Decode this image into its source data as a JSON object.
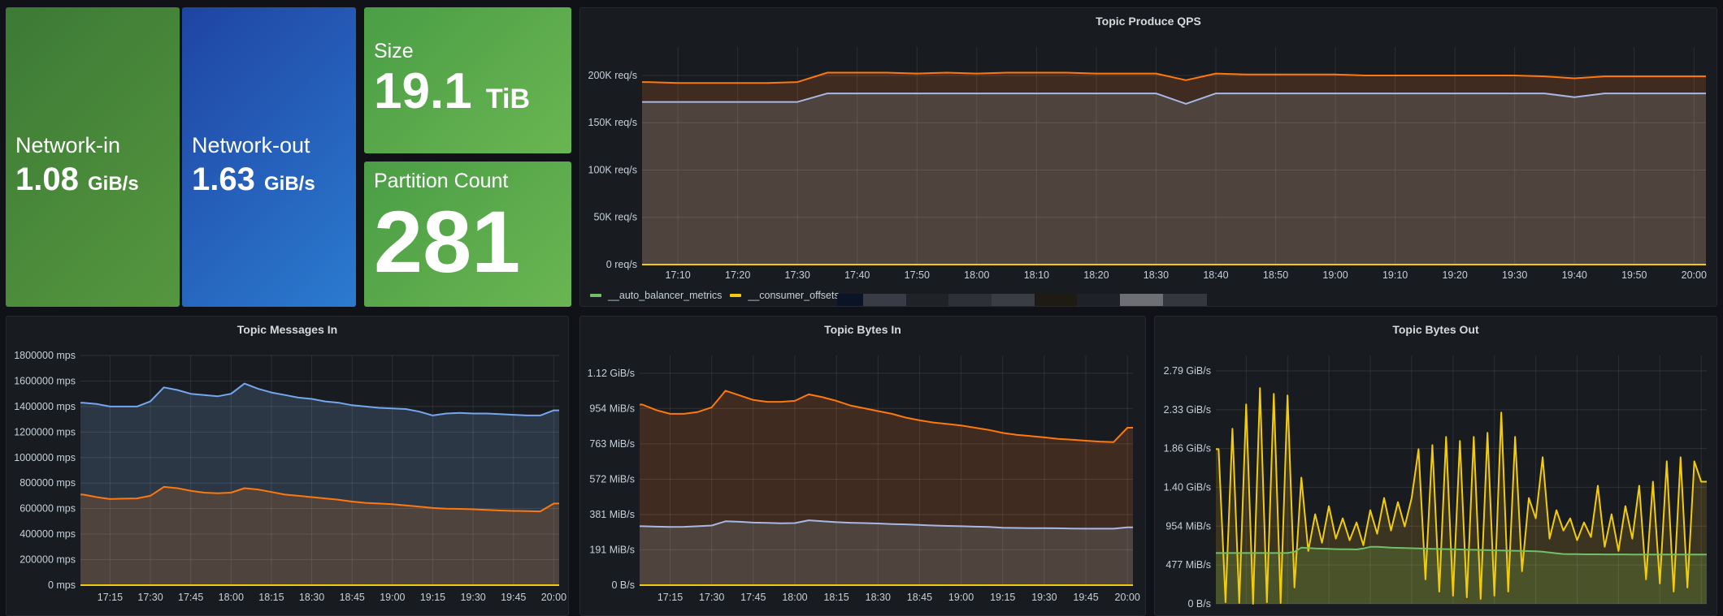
{
  "stats": {
    "network_in": {
      "label": "Network-in",
      "value": "1.08",
      "unit": "GiB/s",
      "color": "#4a8a3c"
    },
    "network_out": {
      "label": "Network-out",
      "value": "1.63",
      "unit": "GiB/s",
      "color": "#2a5fbf"
    },
    "size": {
      "label": "Size",
      "value": "19.1",
      "unit": "TiB",
      "color": "#56a64b"
    },
    "partition_count": {
      "label": "Partition Count",
      "value": "281",
      "color": "#56a64b"
    }
  },
  "legend": {
    "items": [
      {
        "label": "__auto_balancer_metrics",
        "color": "#73bf69"
      },
      {
        "label": "__consumer_offsets",
        "color": "#f2cc0c"
      }
    ],
    "redacted_colors": [
      "#0b1326",
      "#393c44",
      "#1f2227",
      "#2d3037",
      "#3a3d44",
      "#1e1a14",
      "#1e2128",
      "#6e6f75",
      "#34373d"
    ]
  },
  "chart_data": [
    {
      "type": "area",
      "title": "Topic Produce QPS",
      "unit": "req/s",
      "xlim": [
        "17:04",
        "20:02"
      ],
      "ylim": [
        0,
        230000
      ],
      "grid": true,
      "legend_placement": "bottom-left",
      "yticks": [
        {
          "value": 0,
          "label": "0 req/s"
        },
        {
          "value": 50000,
          "label": "50K req/s"
        },
        {
          "value": 100000,
          "label": "100K req/s"
        },
        {
          "value": 150000,
          "label": "150K req/s"
        },
        {
          "value": 200000,
          "label": "200K req/s"
        }
      ],
      "xticks": [
        "17:10",
        "17:20",
        "17:30",
        "17:40",
        "17:50",
        "18:00",
        "18:10",
        "18:20",
        "18:30",
        "18:40",
        "18:50",
        "19:00",
        "19:10",
        "19:20",
        "19:30",
        "19:40",
        "19:50",
        "20:00"
      ],
      "x": [
        "17:05",
        "17:10",
        "17:15",
        "17:20",
        "17:25",
        "17:30",
        "17:35",
        "17:40",
        "17:45",
        "17:50",
        "17:55",
        "18:00",
        "18:05",
        "18:10",
        "18:15",
        "18:20",
        "18:25",
        "18:30",
        "18:35",
        "18:40",
        "18:45",
        "18:50",
        "18:55",
        "19:00",
        "19:05",
        "19:10",
        "19:15",
        "19:20",
        "19:25",
        "19:30",
        "19:35",
        "19:40",
        "19:45",
        "19:50",
        "19:55",
        "20:00"
      ],
      "series": [
        {
          "color": "#ff780a",
          "fill": "#402b20",
          "values": [
            193000,
            192000,
            192000,
            192000,
            192000,
            193000,
            203000,
            203000,
            203000,
            202000,
            203000,
            202000,
            203000,
            203000,
            203000,
            202000,
            202000,
            202000,
            195000,
            202000,
            201000,
            201000,
            201000,
            201000,
            200000,
            200000,
            200000,
            200000,
            200000,
            200000,
            199000,
            197000,
            199000,
            199000,
            199000,
            199000
          ]
        },
        {
          "color": "#a8b8e6",
          "fill": "#4f433d",
          "values": [
            172000,
            172000,
            172000,
            172000,
            172000,
            172000,
            181000,
            181000,
            181000,
            181000,
            181000,
            181000,
            181000,
            181000,
            181000,
            181000,
            181000,
            181000,
            170000,
            181000,
            181000,
            181000,
            181000,
            181000,
            181000,
            181000,
            181000,
            181000,
            181000,
            181000,
            181000,
            177000,
            181000,
            181000,
            181000,
            181000
          ]
        },
        {
          "name": "__consumer_offsets",
          "color": "#f2cc0c",
          "x": [
            "17:04",
            "20:02"
          ],
          "values": [
            0,
            0
          ]
        }
      ]
    },
    {
      "type": "area",
      "title": "Topic Messages In",
      "unit": "mps",
      "xlim": [
        "17:04",
        "20:02"
      ],
      "ylim": [
        0,
        1800000
      ],
      "grid": true,
      "yticks": [
        {
          "value": 0,
          "label": "0 mps"
        },
        {
          "value": 200000,
          "label": "200000 mps"
        },
        {
          "value": 400000,
          "label": "400000 mps"
        },
        {
          "value": 600000,
          "label": "600000 mps"
        },
        {
          "value": 800000,
          "label": "800000 mps"
        },
        {
          "value": 1000000,
          "label": "1000000 mps"
        },
        {
          "value": 1200000,
          "label": "1200000 mps"
        },
        {
          "value": 1400000,
          "label": "1400000 mps"
        },
        {
          "value": 1600000,
          "label": "1600000 mps"
        },
        {
          "value": 1800000,
          "label": "1800000 mps"
        }
      ],
      "xticks": [
        "17:15",
        "17:30",
        "17:45",
        "18:00",
        "18:15",
        "18:30",
        "18:45",
        "19:00",
        "19:15",
        "19:30",
        "19:45",
        "20:00"
      ],
      "x": [
        "17:05",
        "17:10",
        "17:15",
        "17:20",
        "17:25",
        "17:30",
        "17:35",
        "17:40",
        "17:45",
        "17:50",
        "17:55",
        "18:00",
        "18:05",
        "18:10",
        "18:15",
        "18:20",
        "18:25",
        "18:30",
        "18:35",
        "18:40",
        "18:45",
        "18:50",
        "18:55",
        "19:00",
        "19:05",
        "19:10",
        "19:15",
        "19:20",
        "19:25",
        "19:30",
        "19:35",
        "19:40",
        "19:45",
        "19:50",
        "19:55",
        "20:00"
      ],
      "series": [
        {
          "color": "#73a7f0",
          "fill": "#2c3745",
          "values": [
            1430000,
            1420000,
            1400000,
            1400000,
            1400000,
            1440000,
            1550000,
            1530000,
            1500000,
            1490000,
            1480000,
            1500000,
            1580000,
            1540000,
            1510000,
            1490000,
            1470000,
            1460000,
            1440000,
            1430000,
            1410000,
            1400000,
            1390000,
            1385000,
            1380000,
            1360000,
            1330000,
            1345000,
            1350000,
            1345000,
            1345000,
            1340000,
            1335000,
            1330000,
            1330000,
            1370000
          ]
        },
        {
          "color": "#ff780a",
          "fill": "#4f433d",
          "values": [
            710000,
            690000,
            675000,
            678000,
            680000,
            700000,
            770000,
            760000,
            740000,
            725000,
            720000,
            725000,
            760000,
            750000,
            730000,
            710000,
            700000,
            690000,
            680000,
            670000,
            655000,
            645000,
            640000,
            635000,
            625000,
            615000,
            605000,
            600000,
            598000,
            595000,
            590000,
            585000,
            582000,
            580000,
            578000,
            640000
          ]
        },
        {
          "color": "#f2cc0c",
          "x": [
            "17:04",
            "20:02"
          ],
          "values": [
            0,
            0
          ]
        }
      ]
    },
    {
      "type": "area",
      "title": "Topic Bytes In",
      "unit": "MiB/s",
      "xlim": [
        "17:04",
        "20:02"
      ],
      "ylim": [
        0,
        1240
      ],
      "grid": true,
      "yticks": [
        {
          "value": 0,
          "label": "0 B/s"
        },
        {
          "value": 191,
          "label": "191 MiB/s"
        },
        {
          "value": 381,
          "label": "381 MiB/s"
        },
        {
          "value": 572,
          "label": "572 MiB/s"
        },
        {
          "value": 763,
          "label": "763 MiB/s"
        },
        {
          "value": 954,
          "label": "954 MiB/s"
        },
        {
          "value": 1144,
          "label": "1.12 GiB/s"
        }
      ],
      "xticks": [
        "17:15",
        "17:30",
        "17:45",
        "18:00",
        "18:15",
        "18:30",
        "18:45",
        "19:00",
        "19:15",
        "19:30",
        "19:45",
        "20:00"
      ],
      "x": [
        "17:05",
        "17:10",
        "17:15",
        "17:20",
        "17:25",
        "17:30",
        "17:35",
        "17:40",
        "17:45",
        "17:50",
        "17:55",
        "18:00",
        "18:05",
        "18:10",
        "18:15",
        "18:20",
        "18:25",
        "18:30",
        "18:35",
        "18:40",
        "18:45",
        "18:50",
        "18:55",
        "19:00",
        "19:05",
        "19:10",
        "19:15",
        "19:20",
        "19:25",
        "19:30",
        "19:35",
        "19:40",
        "19:45",
        "19:50",
        "19:55",
        "20:00"
      ],
      "series": [
        {
          "color": "#ff780a",
          "fill": "#402b20",
          "values": [
            975,
            945,
            925,
            925,
            935,
            960,
            1050,
            1025,
            1000,
            990,
            990,
            995,
            1030,
            1015,
            995,
            970,
            955,
            940,
            925,
            905,
            890,
            878,
            870,
            862,
            850,
            838,
            822,
            812,
            805,
            798,
            790,
            785,
            780,
            775,
            772,
            850
          ]
        },
        {
          "color": "#a8b8e6",
          "fill": "#4f433d",
          "values": [
            318,
            316,
            314,
            315,
            318,
            322,
            345,
            342,
            338,
            336,
            334,
            335,
            350,
            345,
            340,
            337,
            335,
            333,
            330,
            328,
            325,
            322,
            320,
            318,
            316,
            314,
            310,
            309,
            308,
            308,
            307,
            306,
            305,
            305,
            305,
            312
          ]
        },
        {
          "color": "#f2cc0c",
          "x": [
            "17:04",
            "20:02"
          ],
          "values": [
            0,
            0
          ]
        }
      ]
    },
    {
      "type": "area",
      "title": "Topic Bytes Out",
      "unit": "MiB/s",
      "xlim": [
        "17:04",
        "20:02"
      ],
      "ylim": [
        0,
        3050
      ],
      "grid": true,
      "yticks": [
        {
          "value": 0,
          "label": "0 B/s"
        },
        {
          "value": 477,
          "label": "477 MiB/s"
        },
        {
          "value": 954,
          "label": "954 MiB/s"
        },
        {
          "value": 1431,
          "label": "1.40 GiB/s"
        },
        {
          "value": 1907,
          "label": "1.86 GiB/s"
        },
        {
          "value": 2384,
          "label": "2.33 GiB/s"
        },
        {
          "value": 2861,
          "label": "2.79 GiB/s"
        }
      ],
      "xticks": [],
      "x": [
        "17:05",
        "17:07:30",
        "17:10",
        "17:12:30",
        "17:15",
        "17:17:30",
        "17:20",
        "17:22:30",
        "17:25",
        "17:27:30",
        "17:30",
        "17:32:30",
        "17:35",
        "17:37:30",
        "17:40",
        "17:42:30",
        "17:45",
        "17:47:30",
        "17:50",
        "17:52:30",
        "17:55",
        "17:57:30",
        "18:00",
        "18:02:30",
        "18:05",
        "18:07:30",
        "18:10",
        "18:12:30",
        "18:15",
        "18:17:30",
        "18:20",
        "18:22:30",
        "18:25",
        "18:27:30",
        "18:30",
        "18:32:30",
        "18:35",
        "18:37:30",
        "18:40",
        "18:42:30",
        "18:45",
        "18:47:30",
        "18:50",
        "18:52:30",
        "18:55",
        "18:57:30",
        "19:00",
        "19:02:30",
        "19:05",
        "19:07:30",
        "19:10",
        "19:12:30",
        "19:15",
        "19:17:30",
        "19:20",
        "19:22:30",
        "19:25",
        "19:27:30",
        "19:30",
        "19:32:30",
        "19:35",
        "19:37:30",
        "19:40",
        "19:42:30",
        "19:45",
        "19:47:30",
        "19:50",
        "19:52:30",
        "19:55",
        "19:57:30",
        "20:00"
      ],
      "series": [
        {
          "name": "__consumer_offsets",
          "color": "#f2cc0c",
          "fill": "#3a3420",
          "values": [
            1900,
            20,
            2150,
            10,
            2450,
            0,
            2650,
            20,
            2580,
            10,
            2560,
            200,
            1550,
            650,
            1100,
            750,
            1200,
            800,
            1050,
            780,
            1000,
            720,
            1150,
            860,
            1300,
            900,
            1250,
            950,
            1300,
            1900,
            300,
            1950,
            150,
            2050,
            100,
            2000,
            80,
            2050,
            60,
            2100,
            100,
            2350,
            150,
            2050,
            400,
            1300,
            1050,
            1800,
            800,
            1150,
            900,
            1050,
            780,
            1000,
            820,
            1450,
            700,
            1100,
            650,
            1200,
            800,
            1450,
            300,
            1500,
            250,
            1750,
            150,
            1800,
            200,
            1750,
            1500
          ]
        },
        {
          "name": "__auto_balancer_metrics",
          "color": "#73bf69",
          "fill": "#4a5229",
          "values": [
            624,
            624,
            624,
            624,
            624,
            624,
            624,
            624,
            624,
            624,
            624,
            640,
            690,
            685,
            680,
            678,
            675,
            672,
            670,
            670,
            668,
            680,
            700,
            700,
            695,
            690,
            688,
            685,
            683,
            680,
            678,
            676,
            674,
            672,
            670,
            668,
            666,
            664,
            662,
            660,
            658,
            656,
            654,
            652,
            650,
            648,
            645,
            640,
            630,
            620,
            612,
            610,
            610,
            608,
            608,
            608,
            607,
            607,
            607,
            607,
            606,
            606,
            606,
            606,
            606,
            605,
            605,
            605,
            605,
            605,
            605
          ]
        }
      ]
    }
  ]
}
